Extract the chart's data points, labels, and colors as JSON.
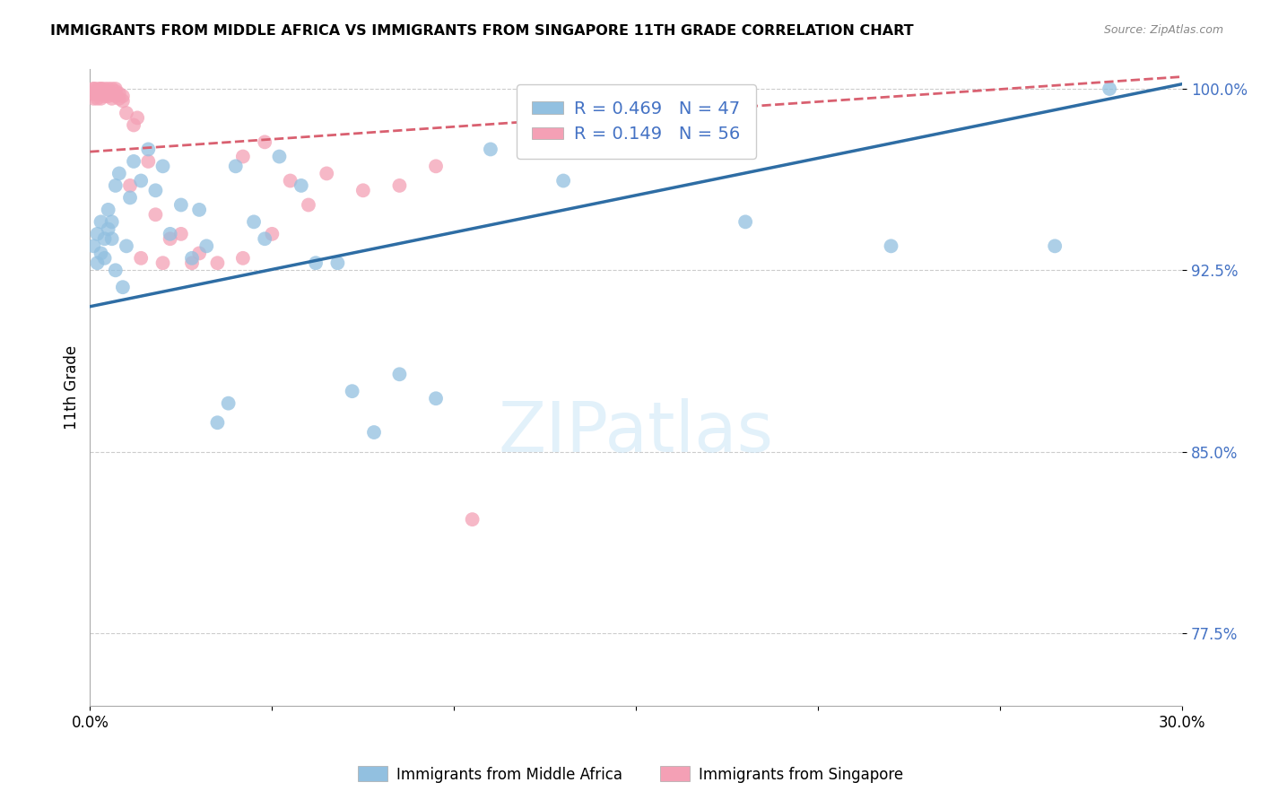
{
  "title": "IMMIGRANTS FROM MIDDLE AFRICA VS IMMIGRANTS FROM SINGAPORE 11TH GRADE CORRELATION CHART",
  "source": "Source: ZipAtlas.com",
  "ylabel": "11th Grade",
  "xlim": [
    0.0,
    0.3
  ],
  "ylim": [
    0.745,
    1.008
  ],
  "xtick_positions": [
    0.0,
    0.05,
    0.1,
    0.15,
    0.2,
    0.25,
    0.3
  ],
  "xticklabels": [
    "0.0%",
    "",
    "",
    "",
    "",
    "",
    "30.0%"
  ],
  "ytick_positions": [
    0.775,
    0.85,
    0.925,
    1.0
  ],
  "ytick_labels": [
    "77.5%",
    "85.0%",
    "92.5%",
    "100.0%"
  ],
  "blue_color": "#92C0E0",
  "pink_color": "#F4A0B5",
  "blue_line_color": "#2e6da4",
  "pink_line_color": "#d96070",
  "legend_label1": "Immigrants from Middle Africa",
  "legend_label2": "Immigrants from Singapore",
  "blue_x": [
    0.001,
    0.002,
    0.002,
    0.003,
    0.003,
    0.004,
    0.004,
    0.005,
    0.005,
    0.006,
    0.006,
    0.007,
    0.007,
    0.008,
    0.009,
    0.01,
    0.011,
    0.012,
    0.014,
    0.016,
    0.018,
    0.02,
    0.022,
    0.025,
    0.028,
    0.03,
    0.032,
    0.035,
    0.038,
    0.04,
    0.045,
    0.048,
    0.052,
    0.058,
    0.062,
    0.068,
    0.072,
    0.078,
    0.085,
    0.095,
    0.11,
    0.13,
    0.155,
    0.18,
    0.22,
    0.265,
    0.28
  ],
  "blue_y": [
    0.935,
    0.94,
    0.928,
    0.945,
    0.932,
    0.93,
    0.938,
    0.942,
    0.95,
    0.938,
    0.945,
    0.96,
    0.925,
    0.965,
    0.918,
    0.935,
    0.955,
    0.97,
    0.962,
    0.975,
    0.958,
    0.968,
    0.94,
    0.952,
    0.93,
    0.95,
    0.935,
    0.862,
    0.87,
    0.968,
    0.945,
    0.938,
    0.972,
    0.96,
    0.928,
    0.928,
    0.875,
    0.858,
    0.882,
    0.872,
    0.975,
    0.962,
    0.982,
    0.945,
    0.935,
    0.935,
    1.0
  ],
  "pink_x": [
    0.001,
    0.001,
    0.001,
    0.001,
    0.001,
    0.002,
    0.002,
    0.002,
    0.002,
    0.003,
    0.003,
    0.003,
    0.003,
    0.003,
    0.004,
    0.004,
    0.004,
    0.004,
    0.005,
    0.005,
    0.005,
    0.005,
    0.006,
    0.006,
    0.006,
    0.007,
    0.007,
    0.007,
    0.008,
    0.008,
    0.009,
    0.009,
    0.01,
    0.011,
    0.012,
    0.013,
    0.014,
    0.016,
    0.018,
    0.02,
    0.022,
    0.025,
    0.028,
    0.03,
    0.035,
    0.042,
    0.048,
    0.055,
    0.065,
    0.075,
    0.085,
    0.095,
    0.105,
    0.042,
    0.05,
    0.06
  ],
  "pink_y": [
    0.998,
    1.0,
    1.0,
    0.998,
    0.996,
    1.0,
    0.998,
    0.996,
    0.999,
    1.0,
    0.998,
    0.996,
    1.0,
    0.998,
    0.997,
    0.999,
    1.0,
    0.998,
    0.997,
    0.999,
    1.0,
    0.998,
    0.996,
    0.998,
    1.0,
    0.997,
    0.999,
    1.0,
    0.996,
    0.998,
    0.995,
    0.997,
    0.99,
    0.96,
    0.985,
    0.988,
    0.93,
    0.97,
    0.948,
    0.928,
    0.938,
    0.94,
    0.928,
    0.932,
    0.928,
    0.972,
    0.978,
    0.962,
    0.965,
    0.958,
    0.96,
    0.968,
    0.822,
    0.93,
    0.94,
    0.952
  ],
  "blue_trend_x0": 0.0,
  "blue_trend_x1": 0.3,
  "blue_trend_y0": 0.91,
  "blue_trend_y1": 1.002,
  "pink_trend_x0": 0.0,
  "pink_trend_x1": 0.3,
  "pink_trend_y0": 0.974,
  "pink_trend_y1": 1.005,
  "watermark": "ZIPatlas",
  "watermark_color": "#D0E8F8"
}
